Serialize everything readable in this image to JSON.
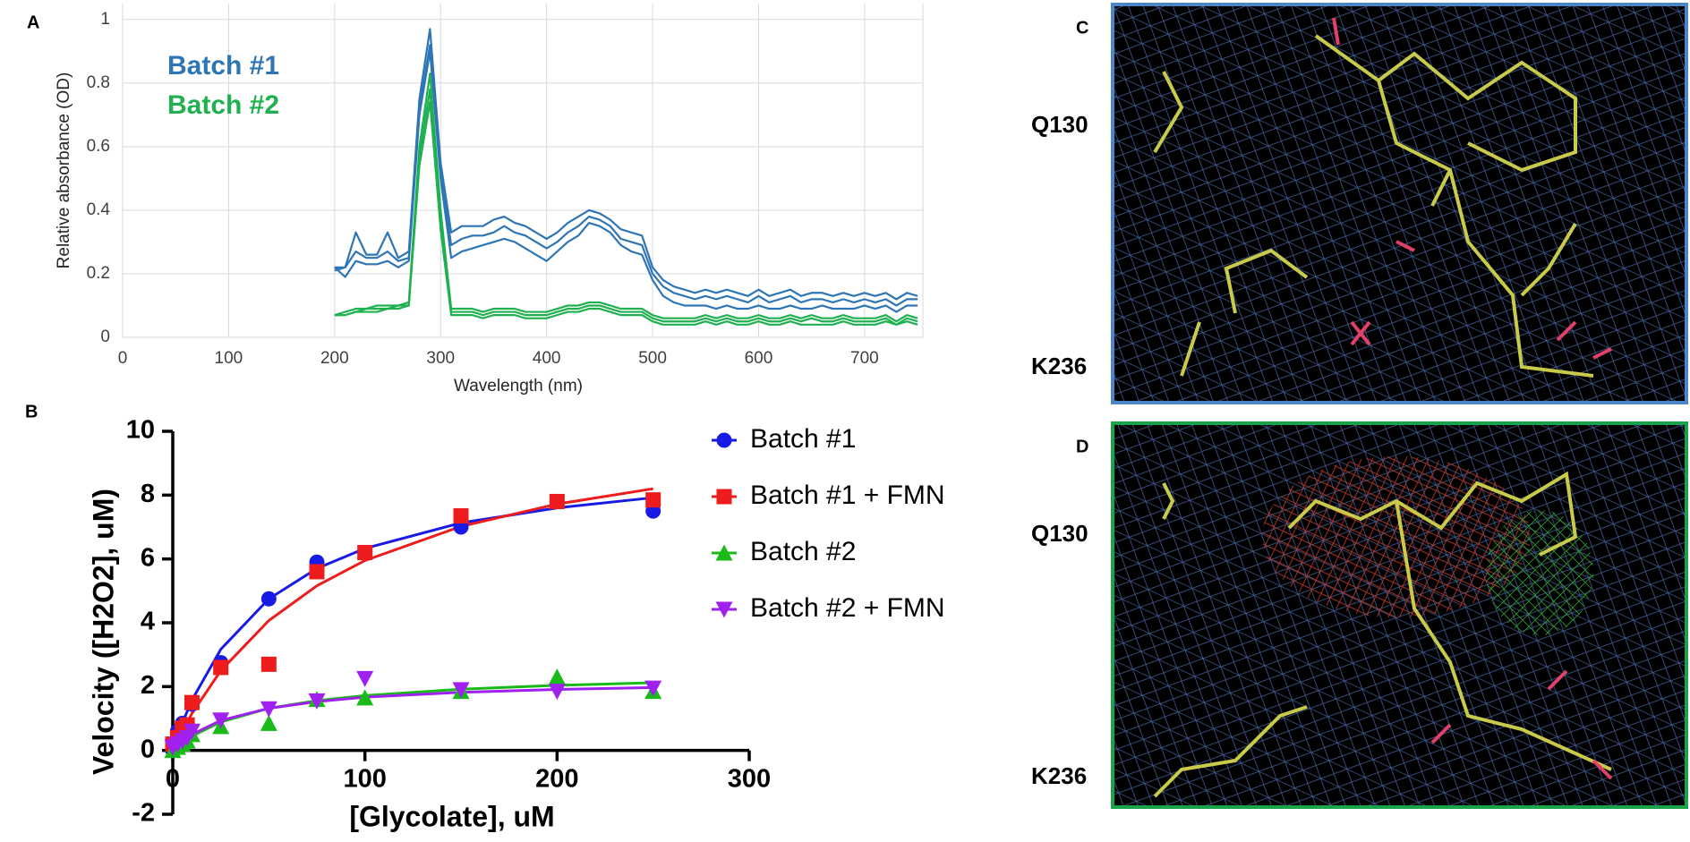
{
  "chart_data": [
    {
      "type": "line",
      "panel_label": "A",
      "xlabel": "Wavelength (nm)",
      "ylabel": "Relative absorbance (OD)",
      "x": [
        200,
        210,
        220,
        230,
        240,
        250,
        260,
        270,
        280,
        290,
        300,
        310,
        320,
        330,
        340,
        350,
        360,
        370,
        380,
        390,
        400,
        410,
        420,
        430,
        440,
        450,
        460,
        470,
        480,
        490,
        500,
        510,
        520,
        530,
        540,
        550,
        560,
        570,
        580,
        590,
        600,
        610,
        620,
        630,
        640,
        650,
        660,
        670,
        680,
        690,
        700,
        710,
        720,
        730,
        740,
        750
      ],
      "series": [
        {
          "name": "Batch #1",
          "color": "#2e75b6",
          "traces": [
            [
              0.22,
              0.22,
              0.33,
              0.26,
              0.26,
              0.33,
              0.25,
              0.27,
              0.75,
              0.97,
              0.55,
              0.33,
              0.35,
              0.35,
              0.35,
              0.37,
              0.38,
              0.36,
              0.35,
              0.33,
              0.31,
              0.33,
              0.36,
              0.38,
              0.4,
              0.39,
              0.37,
              0.34,
              0.33,
              0.32,
              0.22,
              0.18,
              0.16,
              0.15,
              0.14,
              0.15,
              0.14,
              0.15,
              0.14,
              0.13,
              0.15,
              0.13,
              0.14,
              0.15,
              0.13,
              0.14,
              0.14,
              0.13,
              0.14,
              0.13,
              0.14,
              0.13,
              0.14,
              0.12,
              0.14,
              0.13
            ],
            [
              0.21,
              0.22,
              0.27,
              0.25,
              0.25,
              0.27,
              0.24,
              0.25,
              0.72,
              0.92,
              0.52,
              0.29,
              0.31,
              0.32,
              0.32,
              0.33,
              0.35,
              0.33,
              0.32,
              0.3,
              0.28,
              0.3,
              0.33,
              0.35,
              0.38,
              0.37,
              0.35,
              0.31,
              0.3,
              0.29,
              0.2,
              0.16,
              0.14,
              0.13,
              0.12,
              0.13,
              0.12,
              0.13,
              0.12,
              0.11,
              0.13,
              0.11,
              0.12,
              0.13,
              0.11,
              0.12,
              0.12,
              0.11,
              0.12,
              0.11,
              0.12,
              0.11,
              0.12,
              0.1,
              0.12,
              0.12
            ],
            [
              0.22,
              0.19,
              0.24,
              0.23,
              0.23,
              0.24,
              0.22,
              0.24,
              0.7,
              0.9,
              0.5,
              0.25,
              0.27,
              0.28,
              0.29,
              0.3,
              0.31,
              0.3,
              0.28,
              0.26,
              0.24,
              0.27,
              0.3,
              0.32,
              0.36,
              0.35,
              0.33,
              0.29,
              0.27,
              0.26,
              0.18,
              0.13,
              0.11,
              0.1,
              0.1,
              0.1,
              0.09,
              0.1,
              0.09,
              0.09,
              0.1,
              0.09,
              0.09,
              0.1,
              0.09,
              0.09,
              0.1,
              0.09,
              0.09,
              0.09,
              0.1,
              0.09,
              0.1,
              0.08,
              0.1,
              0.1
            ]
          ]
        },
        {
          "name": "Batch #2",
          "color": "#1fb050",
          "traces": [
            [
              0.07,
              0.08,
              0.09,
              0.09,
              0.1,
              0.1,
              0.1,
              0.11,
              0.6,
              0.83,
              0.4,
              0.09,
              0.09,
              0.09,
              0.08,
              0.09,
              0.09,
              0.09,
              0.08,
              0.08,
              0.08,
              0.09,
              0.1,
              0.1,
              0.11,
              0.11,
              0.1,
              0.09,
              0.09,
              0.09,
              0.07,
              0.06,
              0.06,
              0.06,
              0.06,
              0.07,
              0.06,
              0.07,
              0.06,
              0.06,
              0.07,
              0.06,
              0.06,
              0.07,
              0.06,
              0.07,
              0.06,
              0.06,
              0.07,
              0.06,
              0.06,
              0.06,
              0.07,
              0.05,
              0.07,
              0.06
            ],
            [
              0.07,
              0.07,
              0.08,
              0.09,
              0.09,
              0.09,
              0.1,
              0.1,
              0.57,
              0.78,
              0.37,
              0.08,
              0.08,
              0.08,
              0.07,
              0.08,
              0.08,
              0.08,
              0.07,
              0.07,
              0.07,
              0.08,
              0.09,
              0.09,
              0.1,
              0.1,
              0.09,
              0.08,
              0.08,
              0.08,
              0.06,
              0.05,
              0.05,
              0.05,
              0.05,
              0.06,
              0.05,
              0.06,
              0.05,
              0.05,
              0.06,
              0.05,
              0.05,
              0.06,
              0.05,
              0.06,
              0.05,
              0.05,
              0.06,
              0.05,
              0.05,
              0.05,
              0.06,
              0.04,
              0.06,
              0.05
            ],
            [
              0.07,
              0.07,
              0.08,
              0.08,
              0.08,
              0.09,
              0.09,
              0.1,
              0.54,
              0.74,
              0.34,
              0.07,
              0.07,
              0.07,
              0.06,
              0.07,
              0.07,
              0.07,
              0.06,
              0.06,
              0.06,
              0.07,
              0.08,
              0.08,
              0.09,
              0.09,
              0.08,
              0.07,
              0.07,
              0.07,
              0.05,
              0.04,
              0.04,
              0.04,
              0.04,
              0.05,
              0.04,
              0.05,
              0.04,
              0.04,
              0.05,
              0.04,
              0.04,
              0.05,
              0.04,
              0.04,
              0.04,
              0.04,
              0.05,
              0.04,
              0.04,
              0.04,
              0.05,
              0.04,
              0.05,
              0.04
            ]
          ]
        }
      ],
      "xlim": [
        0,
        755
      ],
      "ylim": [
        0,
        1.05
      ],
      "xticks": [
        0,
        100,
        200,
        300,
        400,
        500,
        600,
        700
      ],
      "yticks": [
        0,
        0.2,
        0.4,
        0.6,
        0.8,
        1
      ],
      "grid": true
    },
    {
      "type": "scatter",
      "panel_label": "B",
      "xlabel": "[Glycolate], uM",
      "ylabel": "Velocity ([H2O2], uM)",
      "x": [
        0,
        2.5,
        5,
        7.5,
        10,
        25,
        50,
        75,
        100,
        150,
        200,
        250
      ],
      "series": [
        {
          "name": "Batch #1",
          "color": "#1a1ae6",
          "marker": "circle",
          "values": [
            0,
            0.6,
            0.85,
            0.5,
            1.45,
            2.75,
            4.75,
            5.9,
            6.2,
            7.0,
            7.8,
            7.5
          ],
          "fit": {
            "x": [
              0,
              5,
              10,
              25,
              50,
              75,
              100,
              150,
              200,
              250
            ],
            "values": [
              0,
              0.86,
              1.58,
              3.17,
              4.75,
              5.7,
              6.33,
              7.13,
              7.6,
              7.92
            ]
          }
        },
        {
          "name": "Batch #1 + FMN",
          "color": "#ee1c1c",
          "marker": "square",
          "values": [
            0.2,
            0.4,
            0.7,
            0.8,
            1.5,
            2.6,
            2.7,
            5.6,
            6.2,
            7.35,
            7.8,
            7.85
          ],
          "fit": {
            "x": [
              0,
              5,
              10,
              25,
              50,
              75,
              100,
              150,
              200,
              250
            ],
            "values": [
              0,
              0.61,
              1.16,
              2.5,
              4.07,
              5.16,
              5.95,
              7.02,
              7.72,
              8.2
            ]
          }
        },
        {
          "name": "Batch #2",
          "color": "#19bb19",
          "marker": "triangle",
          "values": [
            0,
            0.1,
            0.2,
            0.3,
            0.5,
            0.75,
            0.85,
            1.6,
            1.65,
            1.85,
            2.3,
            1.85
          ],
          "fit": {
            "x": [
              0,
              5,
              10,
              25,
              50,
              75,
              100,
              150,
              200,
              250
            ],
            "values": [
              0,
              0.25,
              0.45,
              0.89,
              1.32,
              1.56,
              1.72,
              1.92,
              2.04,
              2.12
            ]
          }
        },
        {
          "name": "Batch #2 + FMN",
          "color": "#a020f0",
          "marker": "triangle-down",
          "values": [
            0.1,
            0.2,
            0.3,
            0.4,
            0.6,
            0.95,
            1.3,
            1.55,
            2.25,
            1.9,
            1.85,
            1.95
          ],
          "fit": {
            "x": [
              0,
              5,
              10,
              25,
              50,
              75,
              100,
              150,
              200,
              250
            ],
            "values": [
              0,
              0.28,
              0.5,
              0.94,
              1.32,
              1.53,
              1.67,
              1.82,
              1.91,
              1.97
            ]
          }
        }
      ],
      "xlim": [
        0,
        300
      ],
      "ylim": [
        -2,
        10
      ],
      "xticks": [
        0,
        100,
        200,
        300
      ],
      "yticks": [
        -2,
        0,
        2,
        4,
        6,
        8,
        10
      ],
      "grid": false
    }
  ],
  "structures": [
    {
      "panel_label": "C",
      "residues": [
        "Q130",
        "K236"
      ]
    },
    {
      "panel_label": "D",
      "residues": [
        "Q130",
        "K236"
      ]
    }
  ]
}
